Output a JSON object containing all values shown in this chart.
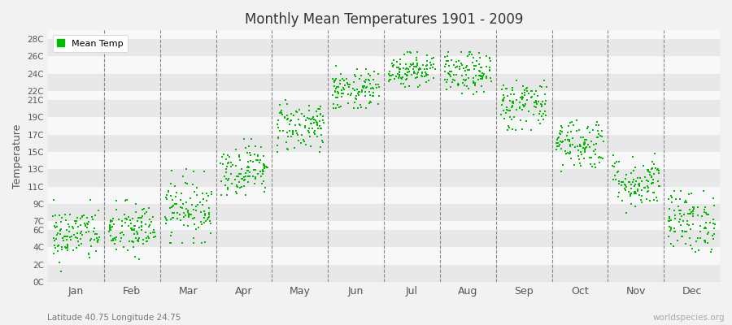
{
  "title": "Monthly Mean Temperatures 1901 - 2009",
  "ylabel": "Temperature",
  "subtitle": "Latitude 40.75 Longitude 24.75",
  "watermark": "worldspecies.org",
  "dot_color": "#00bb00",
  "dot_size": 3,
  "background_color": "#f2f2f2",
  "months": [
    "Jan",
    "Feb",
    "Mar",
    "Apr",
    "May",
    "Jun",
    "Jul",
    "Aug",
    "Sep",
    "Oct",
    "Nov",
    "Dec"
  ],
  "month_centers": [
    0.5,
    1.5,
    2.5,
    3.5,
    4.5,
    5.5,
    6.5,
    7.5,
    8.5,
    9.5,
    10.5,
    11.5
  ],
  "ytick_vals": [
    0,
    2,
    4,
    6,
    7,
    9,
    11,
    13,
    15,
    17,
    19,
    21,
    22,
    24,
    26,
    28
  ],
  "ytick_labels": [
    "0C",
    "2C",
    "4C",
    "6C",
    "7C",
    "9C",
    "11C",
    "13C",
    "15C",
    "17C",
    "19C",
    "21C",
    "22C",
    "24C",
    "26C",
    "28C"
  ],
  "stripe_bands": [
    [
      0,
      2,
      "#e8e8e8"
    ],
    [
      2,
      4,
      "#f8f8f8"
    ],
    [
      4,
      6,
      "#e8e8e8"
    ],
    [
      6,
      7,
      "#f8f8f8"
    ],
    [
      7,
      9,
      "#e8e8e8"
    ],
    [
      9,
      11,
      "#f8f8f8"
    ],
    [
      11,
      13,
      "#e8e8e8"
    ],
    [
      13,
      15,
      "#f8f8f8"
    ],
    [
      15,
      17,
      "#e8e8e8"
    ],
    [
      17,
      19,
      "#f8f8f8"
    ],
    [
      19,
      21,
      "#e8e8e8"
    ],
    [
      21,
      22,
      "#f8f8f8"
    ],
    [
      22,
      24,
      "#e8e8e8"
    ],
    [
      24,
      26,
      "#f8f8f8"
    ],
    [
      26,
      28,
      "#e8e8e8"
    ],
    [
      28,
      29,
      "#f8f8f8"
    ]
  ],
  "ylim": [
    0,
    29
  ],
  "xlim": [
    0,
    12
  ],
  "mean_temps": {
    "Jan": {
      "mean": 5.5,
      "std": 1.6,
      "min": 1.0,
      "max": 9.5
    },
    "Feb": {
      "mean": 6.0,
      "std": 1.6,
      "min": 1.5,
      "max": 10.5
    },
    "Mar": {
      "mean": 8.5,
      "std": 1.8,
      "min": 4.5,
      "max": 13.0
    },
    "Apr": {
      "mean": 13.0,
      "std": 1.5,
      "min": 10.0,
      "max": 16.5
    },
    "May": {
      "mean": 18.0,
      "std": 1.5,
      "min": 15.0,
      "max": 21.0
    },
    "Jun": {
      "mean": 22.0,
      "std": 1.2,
      "min": 20.0,
      "max": 25.0
    },
    "Jul": {
      "mean": 24.5,
      "std": 1.0,
      "min": 22.5,
      "max": 26.5
    },
    "Aug": {
      "mean": 24.0,
      "std": 1.2,
      "min": 21.5,
      "max": 26.5
    },
    "Sep": {
      "mean": 20.5,
      "std": 1.5,
      "min": 17.5,
      "max": 24.0
    },
    "Oct": {
      "mean": 16.0,
      "std": 1.5,
      "min": 12.5,
      "max": 19.5
    },
    "Nov": {
      "mean": 11.5,
      "std": 1.5,
      "min": 8.0,
      "max": 15.0
    },
    "Dec": {
      "mean": 7.0,
      "std": 1.8,
      "min": 3.5,
      "max": 10.5
    }
  },
  "n_years": 109
}
